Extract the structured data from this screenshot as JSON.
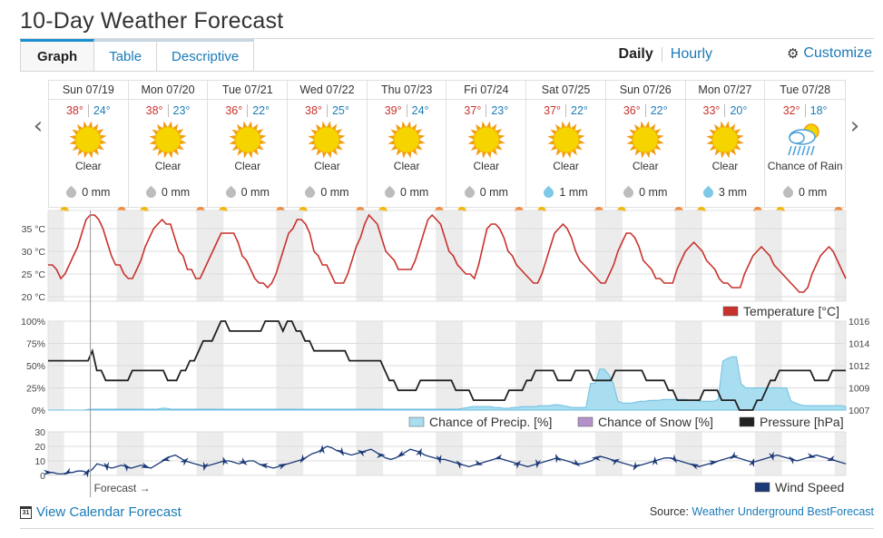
{
  "header": {
    "title": "10-Day Weather Forecast"
  },
  "tabs": [
    {
      "label": "Graph",
      "active": true
    },
    {
      "label": "Table",
      "active": false
    },
    {
      "label": "Descriptive",
      "active": false
    }
  ],
  "view": {
    "daily": "Daily",
    "hourly": "Hourly",
    "customize": "Customize"
  },
  "days": [
    {
      "date": "Sun 07/19",
      "hi": "38°",
      "lo": "24°",
      "icon": "sun-icon",
      "condition": "Clear",
      "precip": "0 mm",
      "wet": false
    },
    {
      "date": "Mon 07/20",
      "hi": "38°",
      "lo": "23°",
      "icon": "sun-icon",
      "condition": "Clear",
      "precip": "0 mm",
      "wet": false
    },
    {
      "date": "Tue 07/21",
      "hi": "36°",
      "lo": "22°",
      "icon": "sun-icon",
      "condition": "Clear",
      "precip": "0 mm",
      "wet": false
    },
    {
      "date": "Wed 07/22",
      "hi": "38°",
      "lo": "25°",
      "icon": "sun-icon",
      "condition": "Clear",
      "precip": "0 mm",
      "wet": false
    },
    {
      "date": "Thu 07/23",
      "hi": "39°",
      "lo": "24°",
      "icon": "sun-icon",
      "condition": "Clear",
      "precip": "0 mm",
      "wet": false
    },
    {
      "date": "Fri 07/24",
      "hi": "37°",
      "lo": "23°",
      "icon": "sun-icon",
      "condition": "Clear",
      "precip": "0 mm",
      "wet": false
    },
    {
      "date": "Sat 07/25",
      "hi": "37°",
      "lo": "22°",
      "icon": "sun-icon",
      "condition": "Clear",
      "precip": "1 mm",
      "wet": true
    },
    {
      "date": "Sun 07/26",
      "hi": "36°",
      "lo": "22°",
      "icon": "sun-icon",
      "condition": "Clear",
      "precip": "0 mm",
      "wet": false
    },
    {
      "date": "Mon 07/27",
      "hi": "33°",
      "lo": "20°",
      "icon": "sun-icon",
      "condition": "Clear",
      "precip": "3 mm",
      "wet": true
    },
    {
      "date": "Tue 07/28",
      "hi": "32°",
      "lo": "18°",
      "icon": "rain-cloud-sun-icon",
      "condition": "Chance of Rain",
      "precip": "0 mm",
      "wet": false
    }
  ],
  "chart_data": [
    {
      "type": "line",
      "name": "temperature",
      "ylabel": "°C",
      "yticks": [
        "35 °C",
        "30 °C",
        "25 °C",
        "20 °C"
      ],
      "ylim": [
        20,
        38
      ],
      "series": [
        {
          "name": "Temperature [°C]",
          "color": "#c8322d",
          "values": [
            27,
            27,
            26,
            24,
            25,
            27,
            29,
            31,
            34,
            37,
            38,
            38,
            37,
            35,
            32,
            29,
            27,
            27,
            25,
            24,
            24,
            26,
            28,
            31,
            33,
            35,
            36,
            37,
            36,
            36,
            33,
            30,
            29,
            26,
            26,
            24,
            24,
            26,
            28,
            30,
            32,
            34,
            34,
            34,
            34,
            32,
            29,
            28,
            26,
            24,
            23,
            23,
            22,
            23,
            25,
            28,
            31,
            34,
            35,
            37,
            37,
            36,
            34,
            30,
            29,
            27,
            27,
            25,
            23,
            23,
            23,
            25,
            28,
            31,
            33,
            36,
            38,
            37,
            36,
            33,
            30,
            29,
            28,
            26,
            26,
            26,
            26,
            28,
            31,
            34,
            37,
            38,
            37,
            36,
            33,
            30,
            29,
            27,
            26,
            25,
            25,
            24,
            27,
            31,
            35,
            36,
            36,
            35,
            33,
            30,
            29,
            27,
            26,
            25,
            24,
            23,
            23,
            25,
            28,
            31,
            34,
            35,
            36,
            35,
            33,
            30,
            28,
            27,
            26,
            25,
            24,
            23,
            23,
            25,
            27,
            30,
            32,
            34,
            34,
            33,
            31,
            28,
            27,
            26,
            24,
            24,
            23,
            23,
            23,
            26,
            28,
            30,
            31,
            32,
            31,
            30,
            28,
            27,
            26,
            24,
            23,
            23,
            22,
            22,
            22,
            25,
            27,
            29,
            30,
            31,
            30,
            29,
            27,
            26,
            25,
            24,
            23,
            22,
            21,
            21,
            22,
            25,
            27,
            29,
            30,
            31,
            30,
            28,
            26,
            24
          ]
        }
      ]
    },
    {
      "type": "area",
      "name": "precip-pressure",
      "ylim_left": [
        0,
        100
      ],
      "left_ticks": [
        "100%",
        "75%",
        "50%",
        "25%",
        "0%"
      ],
      "ylim_right": [
        1007,
        1016
      ],
      "right_ticks": [
        "1016",
        "1014",
        "1012",
        "1009",
        "1007"
      ],
      "series": [
        {
          "name": "Chance of Precip. [%]",
          "color": "#a9ddf0",
          "values": [
            0,
            0,
            0,
            0,
            0,
            0,
            0,
            0,
            0,
            1,
            1,
            1,
            1,
            1,
            1,
            1,
            1,
            1,
            1,
            1,
            1,
            1,
            1,
            1,
            1,
            2,
            2,
            1,
            1,
            1,
            1,
            1,
            1,
            1,
            1,
            1,
            1,
            1,
            1,
            1,
            1,
            1,
            1,
            1,
            1,
            1,
            1,
            1,
            1,
            1,
            1,
            1,
            1,
            1,
            1,
            1,
            1,
            1,
            1,
            1,
            1,
            1,
            1,
            1,
            1,
            1,
            1,
            1,
            1,
            1,
            1,
            1,
            1,
            1,
            1,
            1,
            1,
            1,
            1,
            1,
            1,
            1,
            1,
            1,
            1,
            1,
            1,
            1,
            1,
            1,
            1,
            2,
            3,
            4,
            4,
            4,
            4,
            4,
            3,
            3,
            2,
            2,
            3,
            3,
            4,
            4,
            4,
            4,
            5,
            5,
            5,
            6,
            6,
            5,
            4,
            3,
            3,
            3,
            3,
            30,
            30,
            46,
            46,
            40,
            30,
            10,
            8,
            8,
            8,
            9,
            10,
            10,
            11,
            11,
            11,
            12,
            12,
            12,
            12,
            12,
            12,
            11,
            11,
            10,
            10,
            10,
            10,
            12,
            55,
            58,
            60,
            60,
            30,
            25,
            25,
            25,
            25,
            25,
            25,
            25,
            25,
            25,
            25,
            10,
            8,
            6,
            5,
            5,
            5,
            5,
            5,
            5,
            5,
            5,
            5,
            4
          ]
        },
        {
          "name": "Chance of Snow [%]",
          "color": "#b491c8",
          "values": []
        },
        {
          "name": "Pressure [hPa]",
          "color": "#222222",
          "values": [
            1012,
            1012,
            1012,
            1012,
            1012,
            1012,
            1012,
            1012,
            1012,
            1012,
            1013,
            1011,
            1011,
            1010,
            1010,
            1010,
            1010,
            1010,
            1010,
            1011,
            1011,
            1011,
            1011,
            1011,
            1011,
            1011,
            1011,
            1010,
            1010,
            1010,
            1011,
            1011,
            1012,
            1012,
            1013,
            1014,
            1014,
            1014,
            1015,
            1016,
            1016,
            1015,
            1015,
            1015,
            1015,
            1015,
            1015,
            1015,
            1015,
            1016,
            1016,
            1016,
            1016,
            1015,
            1016,
            1016,
            1015,
            1015,
            1014,
            1014,
            1013,
            1013,
            1013,
            1013,
            1013,
            1013,
            1013,
            1013,
            1012,
            1012,
            1012,
            1012,
            1012,
            1012,
            1012,
            1012,
            1011,
            1010,
            1010,
            1009,
            1009,
            1009,
            1009,
            1009,
            1010,
            1010,
            1010,
            1010,
            1010,
            1010,
            1010,
            1010,
            1009,
            1009,
            1009,
            1009,
            1008,
            1008,
            1008,
            1008,
            1008,
            1008,
            1008,
            1008,
            1009,
            1009,
            1009,
            1009,
            1010,
            1010,
            1011,
            1011,
            1011,
            1011,
            1011,
            1010,
            1010,
            1010,
            1010,
            1011,
            1011,
            1011,
            1011,
            1010,
            1010,
            1010,
            1010,
            1010,
            1011,
            1011,
            1011,
            1011,
            1011,
            1011,
            1011,
            1010,
            1010,
            1010,
            1010,
            1010,
            1009,
            1009,
            1008,
            1008,
            1008,
            1008,
            1008,
            1008,
            1009,
            1009,
            1009,
            1009,
            1008,
            1008,
            1008,
            1008,
            1007,
            1007,
            1007,
            1007,
            1008,
            1008,
            1009,
            1010,
            1010,
            1011,
            1011,
            1011,
            1011,
            1011,
            1011,
            1011,
            1011,
            1010,
            1010,
            1010,
            1010,
            1011,
            1011,
            1011,
            1011
          ]
        }
      ]
    },
    {
      "type": "line",
      "name": "wind",
      "yticks": [
        "30",
        "20",
        "10",
        "0"
      ],
      "ylim": [
        0,
        30
      ],
      "series": [
        {
          "name": "Wind Speed",
          "color": "#1c3a78",
          "values": [
            2,
            2,
            1,
            1,
            2,
            2,
            3,
            3,
            2,
            4,
            8,
            7,
            6,
            5,
            6,
            7,
            6,
            5,
            6,
            7,
            6,
            5,
            7,
            9,
            11,
            13,
            14,
            12,
            10,
            9,
            8,
            7,
            6,
            7,
            8,
            9,
            10,
            10,
            9,
            8,
            9,
            10,
            10,
            8,
            7,
            6,
            5,
            6,
            7,
            8,
            9,
            10,
            11,
            13,
            15,
            16,
            18,
            20,
            19,
            17,
            16,
            15,
            14,
            15,
            16,
            17,
            18,
            16,
            14,
            12,
            11,
            12,
            14,
            16,
            18,
            17,
            16,
            14,
            13,
            12,
            11,
            11,
            10,
            9,
            8,
            7,
            6,
            7,
            8,
            9,
            10,
            11,
            12,
            11,
            10,
            9,
            8,
            7,
            6,
            7,
            8,
            9,
            10,
            11,
            12,
            11,
            10,
            9,
            8,
            8,
            9,
            10,
            12,
            13,
            12,
            11,
            10,
            9,
            8,
            7,
            6,
            7,
            8,
            9,
            10,
            11,
            12,
            12,
            11,
            10,
            9,
            8,
            7,
            6,
            7,
            8,
            9,
            10,
            11,
            12,
            13,
            12,
            11,
            10,
            9,
            10,
            11,
            12,
            13,
            14,
            13,
            12,
            11,
            10,
            11,
            12,
            13,
            14,
            13,
            12,
            11,
            10,
            9,
            8
          ]
        }
      ]
    }
  ],
  "legends": {
    "temperature": "Temperature [°C]",
    "precip": "Chance of Precip. [%]",
    "snow": "Chance of Snow [%]",
    "pressure": "Pressure [hPa]",
    "wind": "Wind Speed"
  },
  "forecast_marker": "Forecast →",
  "footer": {
    "calendar_icon_text": "31",
    "calendar_link": "View Calendar Forecast",
    "source_prefix": "Source:",
    "source_link": "Weather Underground BestForecast"
  },
  "colors": {
    "accent": "#1a7bb8",
    "high_temp": "#c8322d",
    "low_temp": "#1a7bb8",
    "sun": "#f5d400",
    "precip": "#a9ddf0",
    "snow": "#b491c8",
    "pressure": "#222222",
    "wind": "#1c3a78"
  }
}
